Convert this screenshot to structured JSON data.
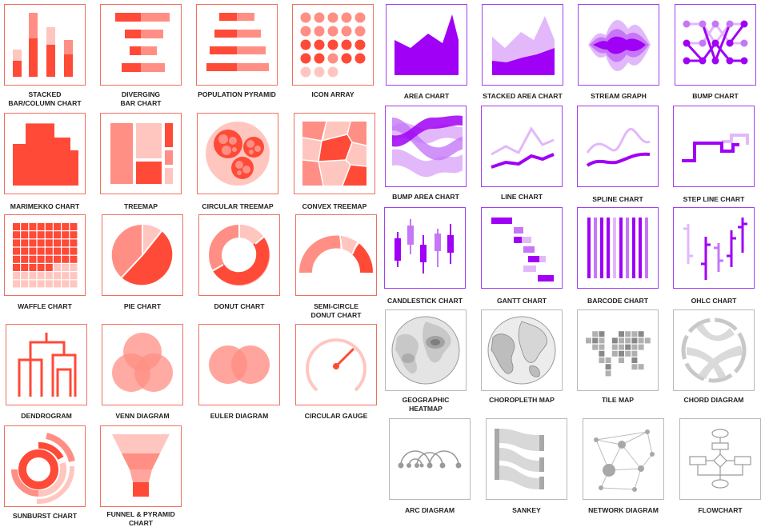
{
  "colors": {
    "red": "#ff4a38",
    "red_mid": "#ff8f84",
    "red_light": "#ffc6c0",
    "purple": "#a000f5",
    "purple_mid": "#c677f7",
    "purple_light": "#e2b8fb",
    "gray": "#b5b5b5",
    "gray_dark": "#888888"
  },
  "charts": [
    {
      "id": "stacked",
      "label": "STACKED\nBAR/COLUMN CHART",
      "icon": "stacked-bar-icon"
    },
    {
      "id": "diverging",
      "label": "DIVERGING\nBAR CHART",
      "icon": "diverging-bar-icon"
    },
    {
      "id": "pyramid",
      "label": "POPULATION PYRAMID",
      "icon": "population-pyramid-icon"
    },
    {
      "id": "iconarray",
      "label": "ICON ARRAY",
      "icon": "icon-array-icon"
    },
    {
      "id": "area",
      "label": "AREA CHART",
      "icon": "area-chart-icon"
    },
    {
      "id": "stackedarea",
      "label": "STACKED AREA CHART",
      "icon": "stacked-area-icon"
    },
    {
      "id": "stream",
      "label": "STREAM GRAPH",
      "icon": "stream-graph-icon"
    },
    {
      "id": "bump",
      "label": "BUMP CHART",
      "icon": "bump-chart-icon"
    },
    {
      "id": "marimekko",
      "label": "MARIMEKKO CHART",
      "icon": "marimekko-icon"
    },
    {
      "id": "treemap",
      "label": "TREEMAP",
      "icon": "treemap-icon"
    },
    {
      "id": "circtreemap",
      "label": "CIRCULAR TREEMAP",
      "icon": "circular-treemap-icon"
    },
    {
      "id": "convextreemap",
      "label": "CONVEX TREEMAP",
      "icon": "convex-treemap-icon"
    },
    {
      "id": "bumparea",
      "label": "BUMP AREA CHART",
      "icon": "bump-area-icon"
    },
    {
      "id": "line",
      "label": "LINE CHART",
      "icon": "line-chart-icon"
    },
    {
      "id": "spline",
      "label": "SPLINE CHART",
      "icon": "spline-chart-icon"
    },
    {
      "id": "stepline",
      "label": "STEP LINE CHART",
      "icon": "step-line-icon"
    },
    {
      "id": "waffle",
      "label": "WAFFLE CHART",
      "icon": "waffle-icon"
    },
    {
      "id": "pie",
      "label": "PIE CHART",
      "icon": "pie-chart-icon"
    },
    {
      "id": "donut",
      "label": "DONUT CHART",
      "icon": "donut-chart-icon"
    },
    {
      "id": "semidonut",
      "label": "SEMI-CIRCLE\nDONUT CHART",
      "icon": "semi-donut-icon"
    },
    {
      "id": "candlestick",
      "label": "CANDLESTICK CHART",
      "icon": "candlestick-icon"
    },
    {
      "id": "gantt",
      "label": "GANTT CHART",
      "icon": "gantt-icon"
    },
    {
      "id": "barcode",
      "label": "BARCODE CHART",
      "icon": "barcode-icon"
    },
    {
      "id": "ohlc",
      "label": "OHLC CHART",
      "icon": "ohlc-icon"
    },
    {
      "id": "dendrogram",
      "label": "DENDROGRAM",
      "icon": "dendrogram-icon"
    },
    {
      "id": "venn",
      "label": "VENN DIAGRAM",
      "icon": "venn-icon"
    },
    {
      "id": "euler",
      "label": "EULER DIAGRAM",
      "icon": "euler-icon"
    },
    {
      "id": "gauge",
      "label": "CIRCULAR GAUGE",
      "icon": "gauge-icon"
    },
    {
      "id": "geoheat",
      "label": "GEOGRAPHIC\nHEATMAP",
      "icon": "geographic-heatmap-icon"
    },
    {
      "id": "choropleth",
      "label": "CHOROPLETH MAP",
      "icon": "choropleth-map-icon"
    },
    {
      "id": "tilemap",
      "label": "TILE MAP",
      "icon": "tile-map-icon"
    },
    {
      "id": "chord",
      "label": "CHORD DIAGRAM",
      "icon": "chord-diagram-icon"
    },
    {
      "id": "sunburst",
      "label": "SUNBURST CHART",
      "icon": "sunburst-icon"
    },
    {
      "id": "funnel",
      "label": "FUNNEL & PYRAMID\nCHART",
      "icon": "funnel-icon"
    },
    {
      "id": "arc",
      "label": "ARC DIAGRAM",
      "icon": "arc-diagram-icon"
    },
    {
      "id": "sankey",
      "label": "SANKEY",
      "icon": "sankey-icon"
    },
    {
      "id": "network",
      "label": "NETWORK DIAGRAM",
      "icon": "network-diagram-icon"
    },
    {
      "id": "flowchart",
      "label": "FLOWCHART",
      "icon": "flowchart-icon"
    }
  ]
}
